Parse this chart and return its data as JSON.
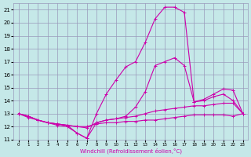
{
  "xlabel": "Windchill (Refroidissement éolien,°C)",
  "background_color": "#c5e8e8",
  "grid_color": "#9999bb",
  "line_color": "#cc00aa",
  "xlim": [
    -0.5,
    23.5
  ],
  "ylim": [
    11,
    21.5
  ],
  "yticks": [
    11,
    12,
    13,
    14,
    15,
    16,
    17,
    18,
    19,
    20,
    21
  ],
  "xticks": [
    0,
    1,
    2,
    3,
    4,
    5,
    6,
    7,
    8,
    9,
    10,
    11,
    12,
    13,
    14,
    15,
    16,
    17,
    18,
    19,
    20,
    21,
    22,
    23
  ],
  "line1_x": [
    0,
    1,
    2,
    3,
    4,
    5,
    6,
    7,
    8,
    9,
    10,
    11,
    12,
    13,
    14,
    15,
    16,
    17,
    18,
    19,
    20,
    21,
    22,
    23
  ],
  "line1_y": [
    13.0,
    12.8,
    12.5,
    12.3,
    12.2,
    12.1,
    12.0,
    12.0,
    12.2,
    12.3,
    12.3,
    12.4,
    12.4,
    12.5,
    12.5,
    12.6,
    12.7,
    12.8,
    12.9,
    12.9,
    12.9,
    12.9,
    12.8,
    13.0
  ],
  "line2_x": [
    0,
    1,
    2,
    3,
    4,
    5,
    6,
    7,
    8,
    9,
    10,
    11,
    12,
    13,
    14,
    15,
    16,
    17,
    18,
    19,
    20,
    21,
    22,
    23
  ],
  "line2_y": [
    13.0,
    12.7,
    12.5,
    12.3,
    12.2,
    12.1,
    12.0,
    11.9,
    12.3,
    12.5,
    12.6,
    12.7,
    12.8,
    13.0,
    13.2,
    13.3,
    13.4,
    13.5,
    13.6,
    13.6,
    13.7,
    13.8,
    13.8,
    13.0
  ],
  "line3_x": [
    0,
    1,
    2,
    3,
    4,
    5,
    6,
    7,
    8,
    9,
    10,
    11,
    12,
    13,
    14,
    15,
    16,
    17,
    18,
    19,
    20,
    21,
    22,
    23
  ],
  "line3_y": [
    13.0,
    12.8,
    12.5,
    12.3,
    12.2,
    12.1,
    11.5,
    11.1,
    12.3,
    12.5,
    12.6,
    12.8,
    13.5,
    14.7,
    16.7,
    17.0,
    17.3,
    16.7,
    13.9,
    14.1,
    14.5,
    14.9,
    14.8,
    13.0
  ],
  "line4_x": [
    0,
    1,
    2,
    3,
    4,
    5,
    6,
    7,
    8,
    9,
    10,
    11,
    12,
    13,
    14,
    15,
    16,
    17,
    18,
    19,
    20,
    21,
    22,
    23
  ],
  "line4_y": [
    13.0,
    12.8,
    12.5,
    12.3,
    12.1,
    12.0,
    11.5,
    11.1,
    13.0,
    14.5,
    15.6,
    16.6,
    17.0,
    18.5,
    20.3,
    21.2,
    21.2,
    20.8,
    13.9,
    14.0,
    14.3,
    14.5,
    14.0,
    13.0
  ]
}
